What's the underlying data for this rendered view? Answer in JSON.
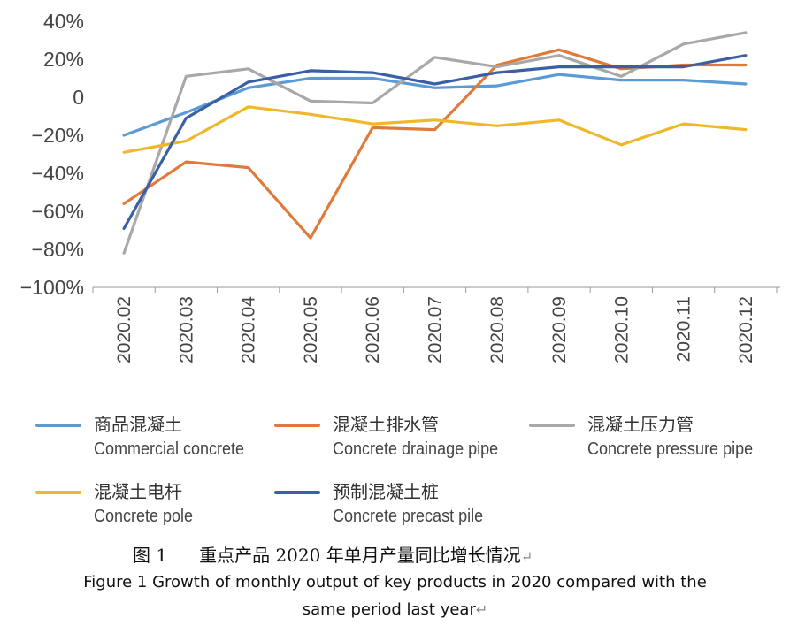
{
  "chart_data": {
    "type": "line",
    "categories": [
      "2020.02",
      "2020.03",
      "2020.04",
      "2020.05",
      "2020.06",
      "2020.07",
      "2020.08",
      "2020.09",
      "2020.10",
      "2020.11",
      "2020.12"
    ],
    "y_ticks": [
      "40%",
      "20%",
      "0",
      "−20%",
      "−40%",
      "−60%",
      "−80%",
      "−100%"
    ],
    "ylim": [
      -100,
      40
    ],
    "grid": false,
    "legend_position": "bottom",
    "series": [
      {
        "name_cn": "商品混凝土",
        "name_en": "Commercial concrete",
        "color": "#5b9bd5",
        "values": [
          -20,
          -8,
          5,
          10,
          10,
          5,
          6,
          12,
          9,
          9,
          7
        ]
      },
      {
        "name_cn": "混凝土排水管",
        "name_en": "Concrete drainage pipe",
        "color": "#e07a3a",
        "values": [
          -56,
          -34,
          -37,
          -74,
          -16,
          -17,
          17,
          25,
          15,
          17,
          17
        ]
      },
      {
        "name_cn": "混凝土压力管",
        "name_en": "Concrete pressure pipe",
        "color": "#a8a8a8",
        "values": [
          -82,
          11,
          15,
          -2,
          -3,
          21,
          16,
          22,
          11,
          28,
          34
        ]
      },
      {
        "name_cn": "混凝土电杆",
        "name_en": "Concrete pole",
        "color": "#efb82c",
        "values": [
          -29,
          -23,
          -5,
          -9,
          -14,
          -12,
          -15,
          -12,
          -25,
          -14,
          -17
        ]
      },
      {
        "name_cn": "预制混凝土桩",
        "name_en": "Concrete precast pile",
        "color": "#3b5fa6",
        "values": [
          -69,
          -11,
          8,
          14,
          13,
          7,
          13,
          16,
          16,
          16,
          22
        ]
      }
    ]
  },
  "caption": {
    "cn_fig": "图 1",
    "cn_title": "重点产品 2020 年单月产量同比增长情况",
    "en_line1": "Figure 1 Growth of monthly output of key products in 2020 compared with the",
    "en_line2": "same period last year",
    "return_mark": "↵"
  }
}
